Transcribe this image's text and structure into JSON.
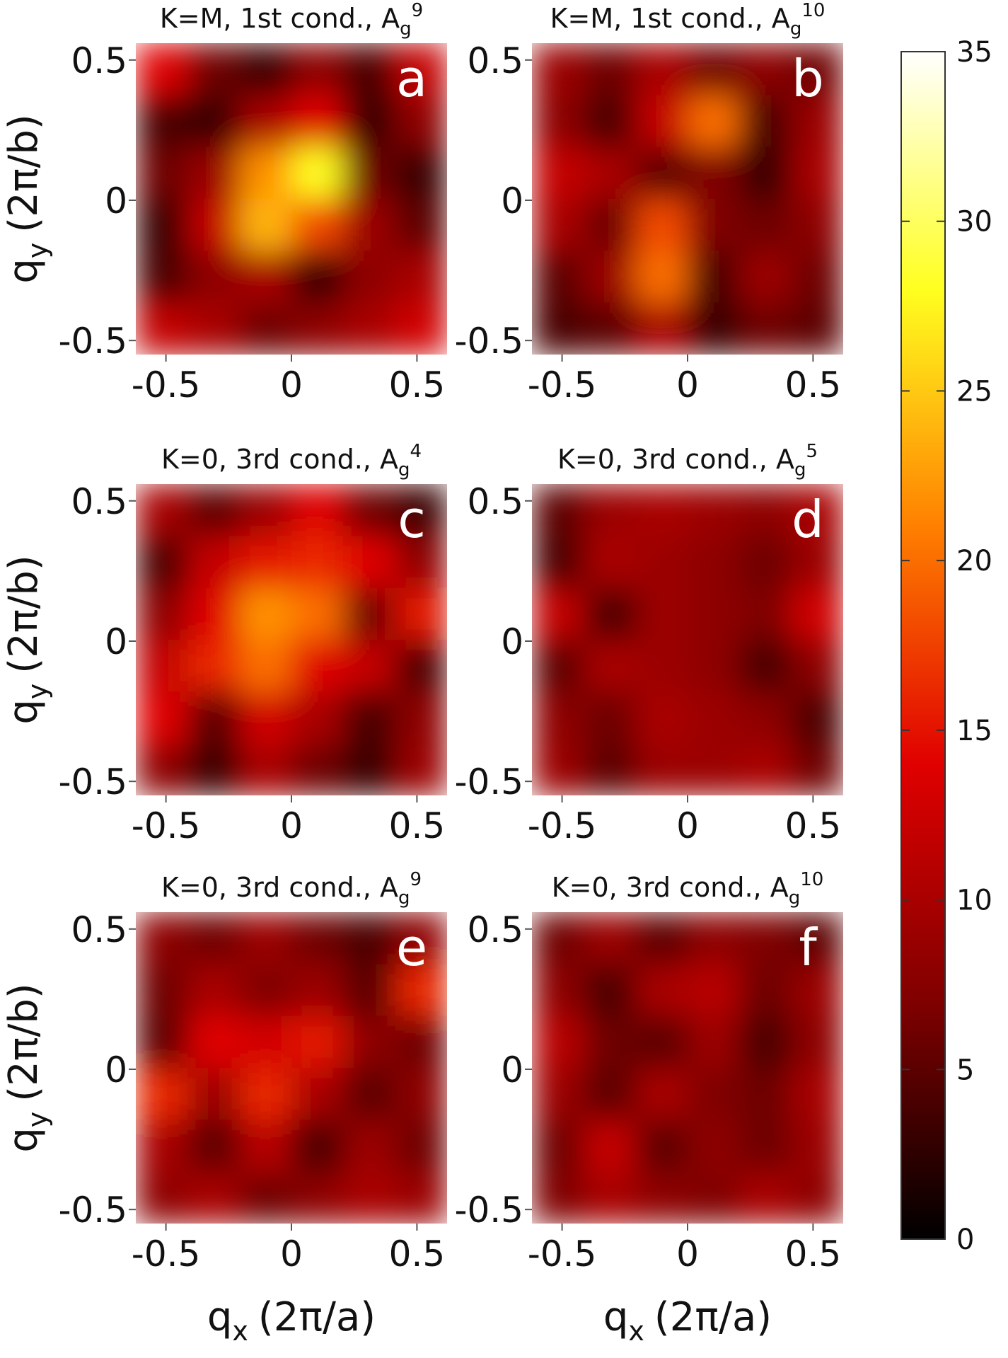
{
  "chart_data": [
    {
      "type": "heatmap",
      "title": "K=M, 1st cond., A",
      "title_sub": "g",
      "title_sup": "9",
      "panel_label": "a",
      "xlim": [
        -0.62,
        0.62
      ],
      "ylim": [
        -0.55,
        0.56
      ],
      "xticks": [
        -0.5,
        0,
        0.5
      ],
      "yticks": [
        -0.5,
        0,
        0.5
      ],
      "ylabel": "q",
      "ylabel_sub": "y",
      "ylabel_unit": "(2π/b)",
      "z": [
        [
          14,
          6,
          3,
          8,
          4,
          12
        ],
        [
          4,
          3,
          10,
          14,
          3,
          8
        ],
        [
          6,
          9,
          22,
          28,
          6,
          3
        ],
        [
          3,
          12,
          24,
          18,
          9,
          5
        ],
        [
          4,
          8,
          10,
          3,
          8,
          10
        ],
        [
          12,
          10,
          6,
          8,
          10,
          13
        ]
      ]
    },
    {
      "type": "heatmap",
      "title": "K=M, 1st cond., A",
      "title_sub": "g",
      "title_sup": "10",
      "panel_label": "b",
      "xlim": [
        -0.62,
        0.62
      ],
      "ylim": [
        -0.55,
        0.56
      ],
      "xticks": [
        -0.5,
        0,
        0.5
      ],
      "yticks": [
        -0.5,
        0,
        0.5
      ],
      "z": [
        [
          9,
          6,
          10,
          6,
          8,
          6
        ],
        [
          8,
          4,
          12,
          20,
          4,
          9
        ],
        [
          12,
          10,
          5,
          7,
          3,
          10
        ],
        [
          10,
          6,
          18,
          7,
          6,
          8
        ],
        [
          5,
          9,
          20,
          4,
          9,
          6
        ],
        [
          4,
          5,
          10,
          3,
          6,
          5
        ]
      ]
    },
    {
      "type": "heatmap",
      "title": "K=0, 3rd cond., A",
      "title_sub": "g",
      "title_sup": "4",
      "panel_label": "c",
      "xlim": [
        -0.62,
        0.62
      ],
      "ylim": [
        -0.55,
        0.56
      ],
      "xticks": [
        -0.5,
        0,
        0.5
      ],
      "yticks": [
        -0.5,
        0,
        0.5
      ],
      "ylabel": "q",
      "ylabel_sub": "y",
      "ylabel_unit": "(2π/b)",
      "z": [
        [
          10,
          5,
          9,
          14,
          6,
          3
        ],
        [
          4,
          12,
          15,
          16,
          14,
          8
        ],
        [
          8,
          14,
          22,
          20,
          6,
          15
        ],
        [
          12,
          16,
          20,
          14,
          12,
          4
        ],
        [
          14,
          5,
          13,
          10,
          4,
          8
        ],
        [
          8,
          3,
          10,
          6,
          3,
          9
        ]
      ]
    },
    {
      "type": "heatmap",
      "title": "K=0, 3rd cond., A",
      "title_sub": "g",
      "title_sup": "5",
      "panel_label": "d",
      "xlim": [
        -0.62,
        0.62
      ],
      "ylim": [
        -0.55,
        0.56
      ],
      "xticks": [
        -0.5,
        0,
        0.5
      ],
      "yticks": [
        -0.5,
        0,
        0.5
      ],
      "z": [
        [
          5,
          9,
          10,
          9,
          8,
          10
        ],
        [
          4,
          10,
          9,
          8,
          6,
          9
        ],
        [
          12,
          4,
          9,
          8,
          7,
          13
        ],
        [
          5,
          10,
          9,
          8,
          4,
          8
        ],
        [
          8,
          6,
          10,
          9,
          8,
          4
        ],
        [
          9,
          5,
          9,
          9,
          10,
          6
        ]
      ]
    },
    {
      "type": "heatmap",
      "title": "K=0, 3rd cond., A",
      "title_sub": "g",
      "title_sup": "9",
      "panel_label": "e",
      "xlim": [
        -0.62,
        0.62
      ],
      "ylim": [
        -0.55,
        0.56
      ],
      "xticks": [
        -0.5,
        0,
        0.5
      ],
      "yticks": [
        -0.5,
        0,
        0.5
      ],
      "ylabel": "q",
      "ylabel_sub": "y",
      "ylabel_unit": "(2π/b)",
      "xlabel": "q",
      "xlabel_sub": "x",
      "xlabel_unit": "(2π/a)",
      "z": [
        [
          8,
          6,
          9,
          6,
          4,
          8
        ],
        [
          6,
          10,
          7,
          9,
          5,
          16
        ],
        [
          5,
          14,
          13,
          15,
          8,
          6
        ],
        [
          16,
          9,
          16,
          10,
          5,
          8
        ],
        [
          10,
          5,
          11,
          4,
          9,
          6
        ],
        [
          8,
          10,
          6,
          8,
          10,
          9
        ]
      ]
    },
    {
      "type": "heatmap",
      "title": "K=0, 3rd cond., A",
      "title_sub": "g",
      "title_sup": "10",
      "panel_label": "f",
      "xlim": [
        -0.62,
        0.62
      ],
      "ylim": [
        -0.55,
        0.56
      ],
      "xticks": [
        -0.5,
        0,
        0.5
      ],
      "yticks": [
        -0.5,
        0,
        0.5
      ],
      "xlabel": "q",
      "xlabel_sub": "x",
      "xlabel_unit": "(2π/a)",
      "z": [
        [
          6,
          9,
          5,
          8,
          7,
          5
        ],
        [
          8,
          4,
          10,
          11,
          6,
          9
        ],
        [
          11,
          6,
          5,
          9,
          4,
          8
        ],
        [
          9,
          5,
          10,
          7,
          6,
          10
        ],
        [
          6,
          12,
          5,
          8,
          6,
          9
        ],
        [
          7,
          10,
          8,
          7,
          10,
          8
        ]
      ]
    },
    {
      "type": "colorbar",
      "zlim": [
        0,
        35
      ],
      "zticks": [
        0,
        5,
        10,
        15,
        20,
        25,
        30,
        35
      ],
      "colormap": [
        "#000000",
        "#800000",
        "#e00000",
        "#ff8000",
        "#ffff20",
        "#ffffff"
      ]
    }
  ]
}
